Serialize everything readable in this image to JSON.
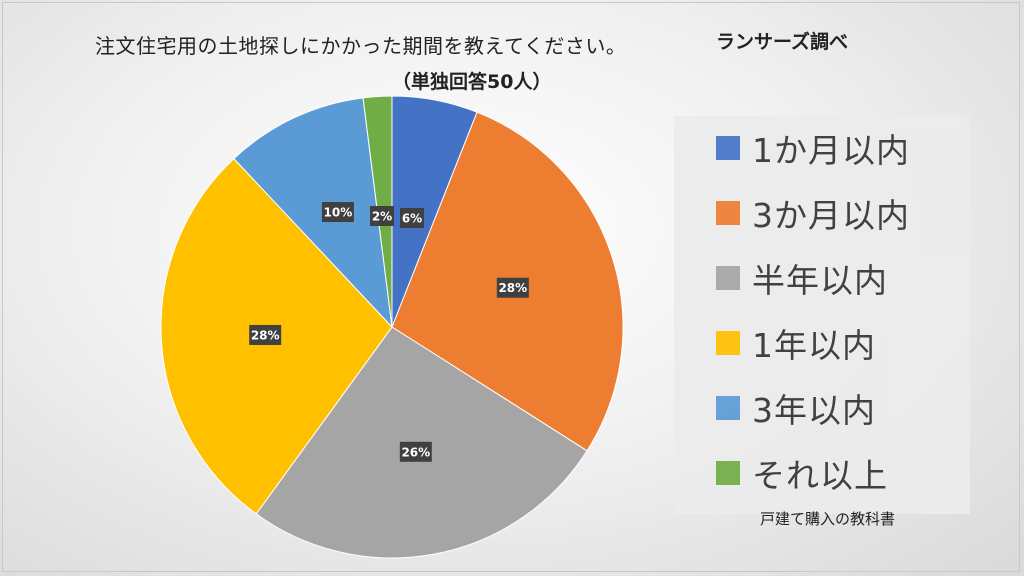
{
  "header": {
    "title": "注文住宅用の土地探しにかかった期間を教えてください。",
    "subtitle": "（単独回答50人）",
    "source": "ランサーズ調べ"
  },
  "footer": {
    "credit": "戸建て購入の教科書"
  },
  "chart_data": {
    "type": "pie",
    "title": "注文住宅用の土地探しにかかった期間を教えてください。",
    "subtitle": "（単独回答50人）",
    "categories": [
      "1か月以内",
      "3か月以内",
      "半年以内",
      "1年以内",
      "3年以内",
      "それ以上"
    ],
    "values": [
      6,
      28,
      26,
      28,
      10,
      2
    ],
    "data_labels": [
      "6%",
      "28%",
      "26%",
      "28%",
      "10%",
      "2%"
    ],
    "colors": [
      "#4472c4",
      "#ed7d31",
      "#a5a5a5",
      "#ffc000",
      "#5b9bd5",
      "#70ad47"
    ],
    "unit": "%",
    "legend_position": "right"
  }
}
